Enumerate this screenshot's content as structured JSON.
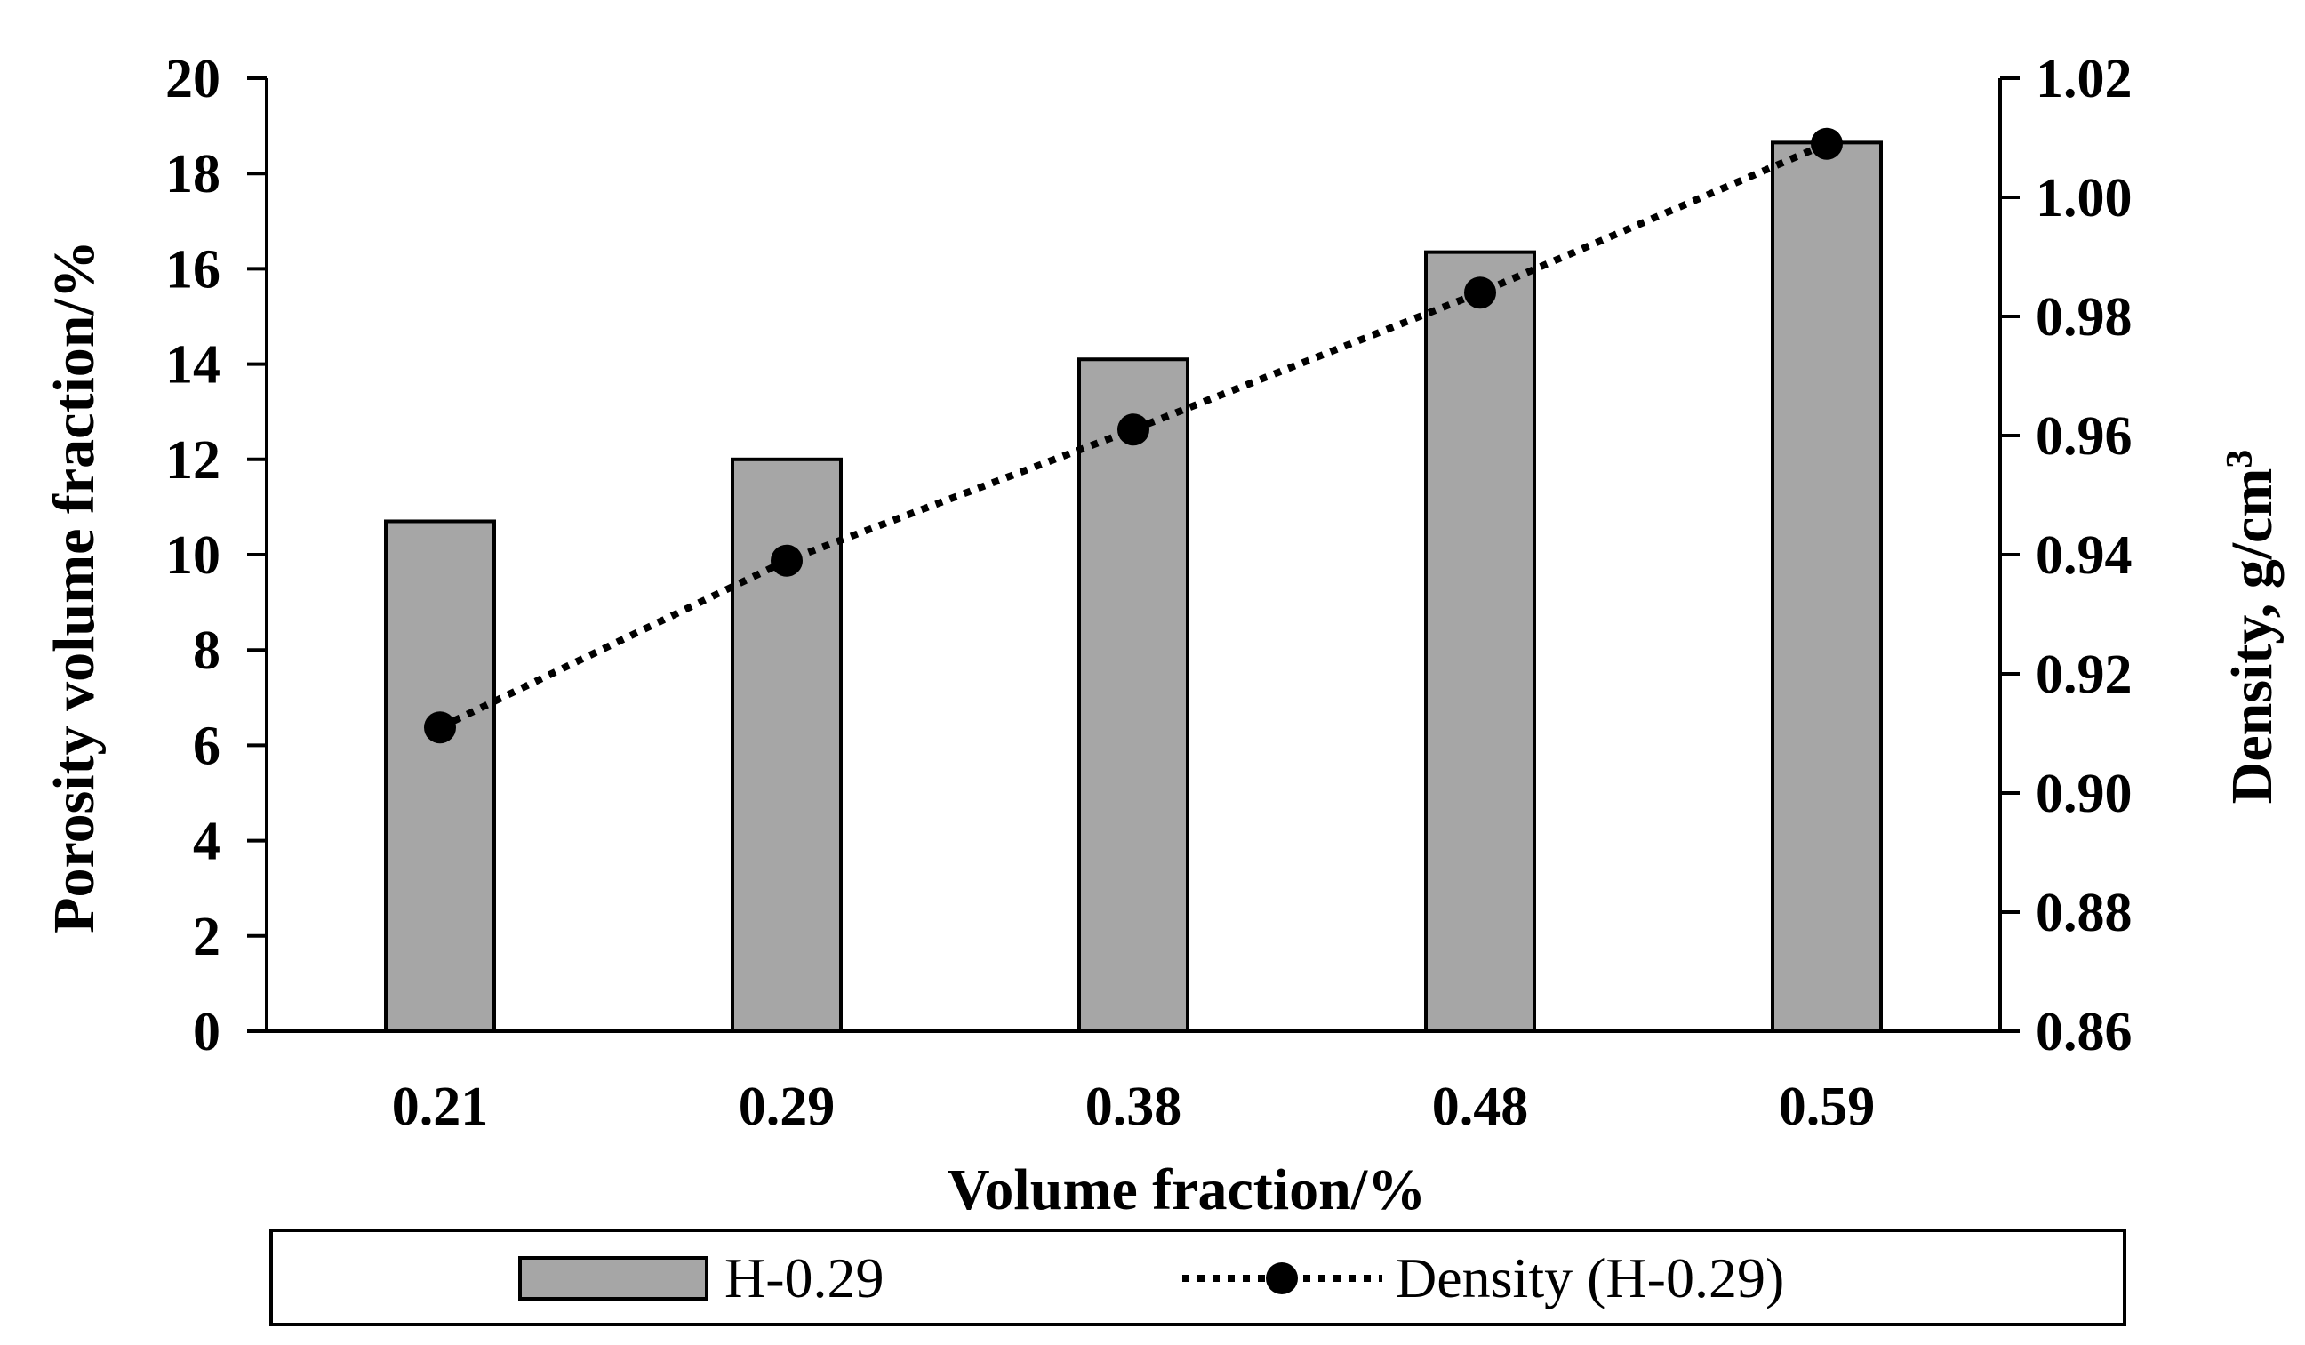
{
  "chart_data": {
    "type": "bar",
    "categories": [
      "0.21",
      "0.29",
      "0.38",
      "0.48",
      "0.59"
    ],
    "series": [
      {
        "name": "H-0.29",
        "kind": "bar",
        "axis": "left",
        "values": [
          10.7,
          12.0,
          14.1,
          16.35,
          18.65
        ],
        "color": "#a6a6a6"
      },
      {
        "name": "Density (H-0.29)",
        "kind": "line",
        "axis": "right",
        "style": "dotted",
        "marker": "circle",
        "values": [
          0.911,
          0.939,
          0.961,
          0.984,
          1.009
        ],
        "color": "#000000"
      }
    ],
    "xlabel": "Volume fraction/%",
    "ylabel": "Porosity volume fraction/%",
    "y2label": "Density, g/cm",
    "y2label_sup": "3",
    "ylim": [
      0,
      20
    ],
    "yticks": [
      "0",
      "2",
      "4",
      "6",
      "8",
      "10",
      "12",
      "14",
      "16",
      "18",
      "20"
    ],
    "y2lim": [
      0.86,
      1.02
    ],
    "y2ticks": [
      "0.86",
      "0.88",
      "0.90",
      "0.92",
      "0.94",
      "0.96",
      "0.98",
      "1.00",
      "1.02"
    ],
    "grid": false,
    "legend_position": "bottom"
  }
}
